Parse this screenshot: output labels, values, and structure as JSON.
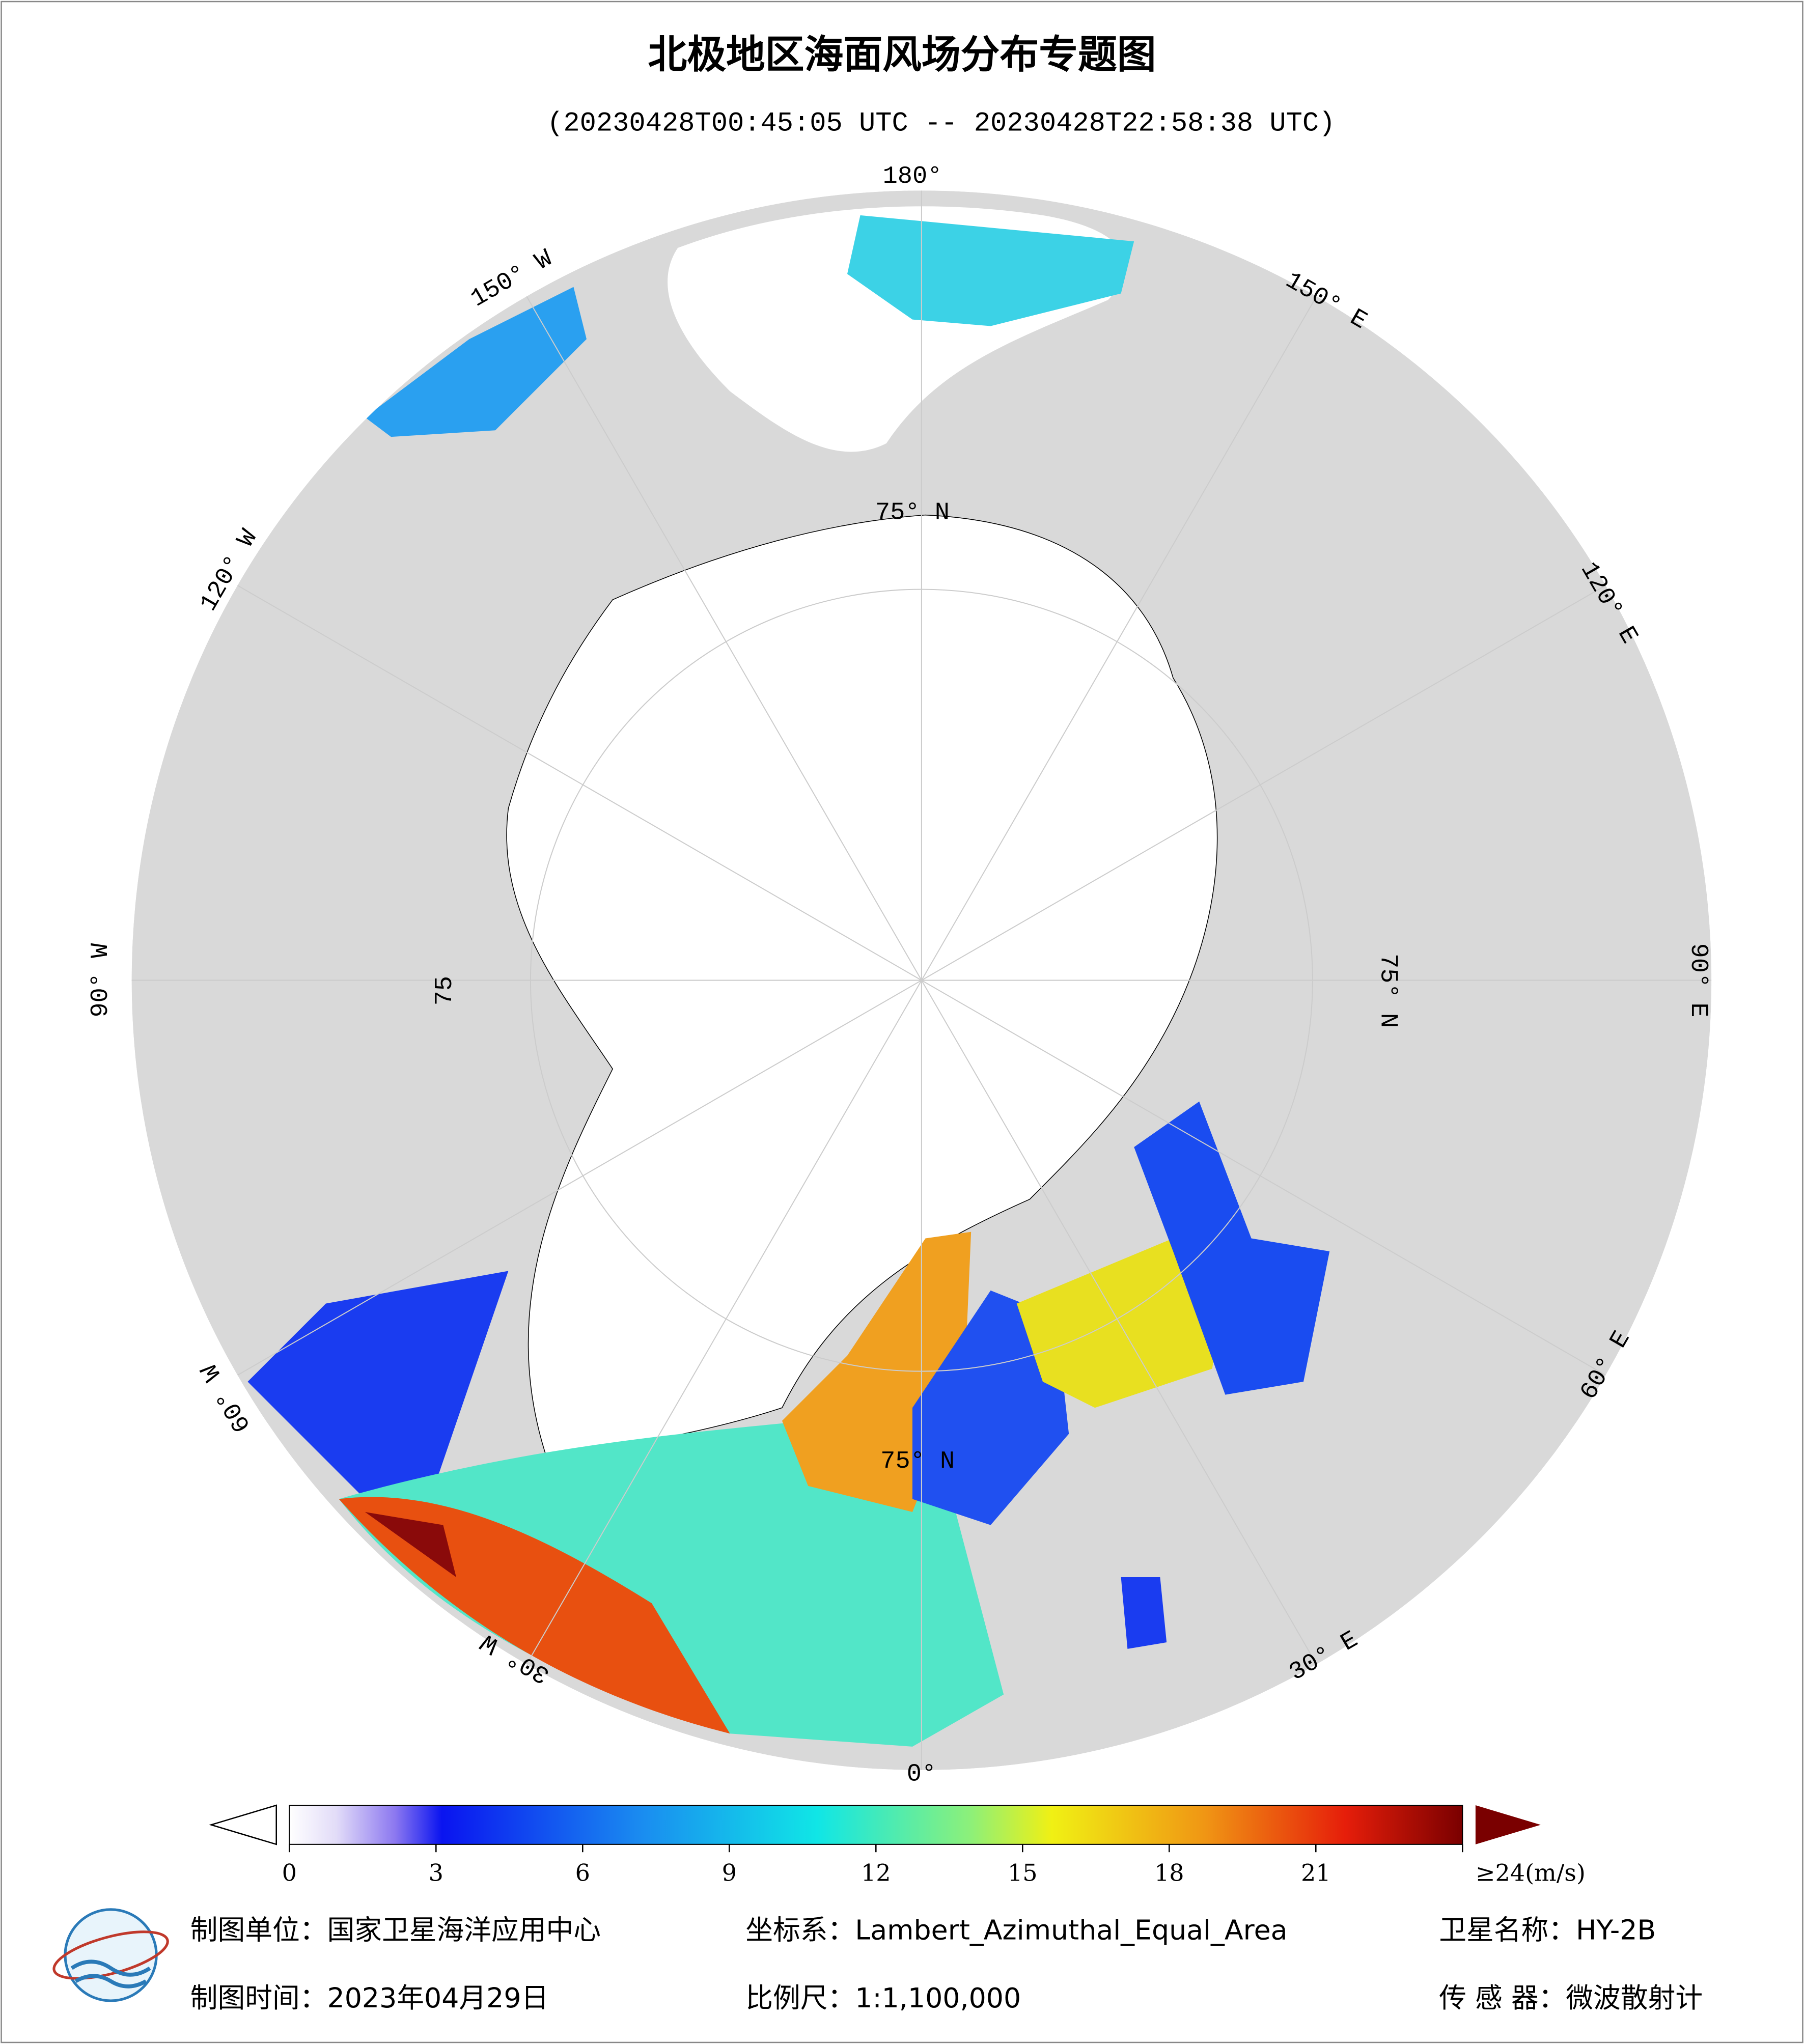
{
  "title": "北极地区海面风场分布专题图",
  "subtitle": "(20230428T00:45:05 UTC -- 20230428T22:58:38 UTC)",
  "map": {
    "longitude_labels": [
      "180°",
      "150° E",
      "120° E",
      "90° E",
      "60° E",
      "30° E",
      "0°",
      "30° W",
      "60° W",
      "90° W",
      "120° W",
      "150° W"
    ],
    "latitude_labels": [
      "75° N",
      "75° N",
      "75",
      "75° N"
    ]
  },
  "colorbar": {
    "min": 0,
    "max": 24,
    "ticks": [
      0,
      3,
      6,
      9,
      12,
      15,
      18,
      21,
      {
        "value": 24,
        "label": "≥24(m/s)"
      }
    ]
  },
  "footer": {
    "producer": "制图单位：国家卫星海洋应用中心",
    "projection": "坐标系：Lambert_Azimuthal_Equal_Area",
    "satellite": "卫星名称：HY-2B",
    "date": "制图时间：2023年04月29日",
    "scale": "比例尺：1:1,100,000",
    "sensor": "传 感 器：微波散射计"
  }
}
